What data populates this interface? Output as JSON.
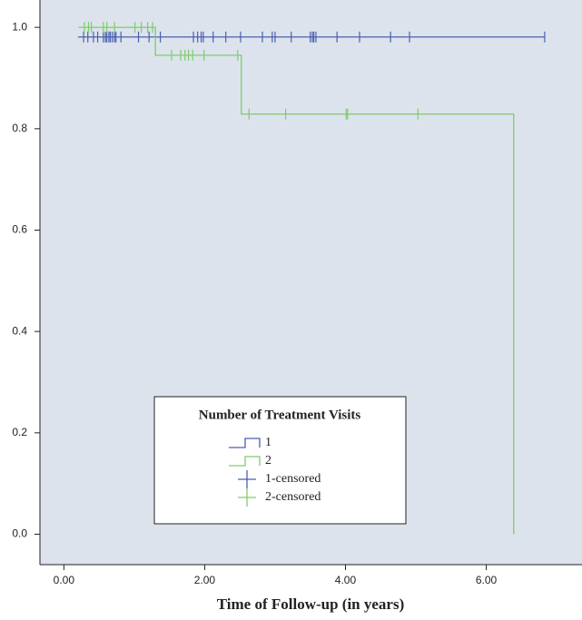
{
  "chart_data": {
    "type": "step",
    "xlabel": "Time of Follow-up (in years)",
    "xlim": [
      -0.34,
      7.36
    ],
    "ylim": [
      -0.06,
      1.054
    ],
    "xticks": [
      {
        "value": 0,
        "label": "0.00"
      },
      {
        "value": 2,
        "label": "2.00"
      },
      {
        "value": 4,
        "label": "4.00"
      },
      {
        "value": 6,
        "label": "6.00"
      }
    ],
    "yticks": [
      {
        "value": 0,
        "label": "0.0"
      },
      0.2,
      0.4,
      0.6,
      0.8,
      {
        "value": 1,
        "label": "1.0"
      }
    ],
    "legend_title": "Number of Treatment Visits",
    "legend": "lower center",
    "series": [
      {
        "name": "1",
        "color": "#4a5fb0",
        "x": [
          0.2,
          6.83
        ],
        "values": [
          0.981,
          0.981
        ],
        "censored_name": "1-censored",
        "censored_x": [
          0.28,
          0.34,
          0.42,
          0.48,
          0.56,
          0.59,
          0.61,
          0.64,
          0.66,
          0.69,
          0.72,
          0.74,
          0.81,
          1.06,
          1.21,
          1.37,
          1.84,
          1.9,
          1.95,
          1.98,
          2.12,
          2.3,
          2.51,
          2.82,
          2.96,
          3.0,
          3.23,
          3.5,
          3.53,
          3.55,
          3.58,
          3.88,
          4.2,
          4.64,
          4.91,
          6.83
        ],
        "censored_values": [
          0.981,
          0.981,
          0.981,
          0.981,
          0.981,
          0.981,
          0.981,
          0.981,
          0.981,
          0.981,
          0.981,
          0.981,
          0.981,
          0.981,
          0.981,
          0.981,
          0.981,
          0.981,
          0.981,
          0.981,
          0.981,
          0.981,
          0.981,
          0.981,
          0.981,
          0.981,
          0.981,
          0.981,
          0.981,
          0.981,
          0.981,
          0.981,
          0.981,
          0.981,
          0.981,
          0.981
        ]
      },
      {
        "name": "2",
        "color": "#7dcc6c",
        "x": [
          0.21,
          1.3,
          2.52,
          6.39
        ],
        "values": [
          1.0,
          0.945,
          0.829,
          0.0
        ],
        "censored_name": "2-censored",
        "censored_x": [
          0.29,
          0.35,
          0.39,
          0.56,
          0.61,
          0.72,
          1.01,
          1.1,
          1.19,
          1.26,
          1.53,
          1.66,
          1.72,
          1.77,
          1.83,
          1.99,
          2.47,
          2.63,
          3.15,
          4.01,
          4.03,
          5.03
        ],
        "censored_values": [
          1.0,
          1.0,
          1.0,
          1.0,
          1.0,
          1.0,
          1.0,
          1.0,
          1.0,
          1.0,
          0.945,
          0.945,
          0.945,
          0.945,
          0.945,
          0.945,
          0.945,
          0.829,
          0.829,
          0.829,
          0.829,
          0.829
        ]
      }
    ]
  }
}
